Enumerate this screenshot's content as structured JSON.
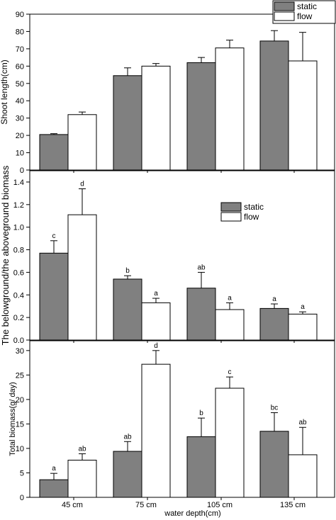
{
  "chart_data": [
    {
      "type": "bar",
      "ylabel": "Shoot length(cm)",
      "ylim": [
        0,
        90
      ],
      "yticks": [
        0,
        10,
        20,
        30,
        40,
        50,
        60,
        70,
        80,
        90
      ],
      "categories": [
        "45 cm",
        "75 cm",
        "105 cm",
        "135 cm"
      ],
      "series": [
        {
          "name": "static",
          "color": "#808080",
          "values": [
            20.5,
            54.5,
            62,
            74.5
          ],
          "errors": [
            0.5,
            4.5,
            3,
            6
          ],
          "labels": [
            "",
            "",
            "",
            ""
          ]
        },
        {
          "name": "flow",
          "color": "#ffffff",
          "values": [
            32,
            60,
            70.5,
            63
          ],
          "errors": [
            1.5,
            1.5,
            4.5,
            16.5
          ],
          "labels": [
            "",
            "",
            "",
            ""
          ]
        }
      ],
      "legend": "top-right"
    },
    {
      "type": "bar",
      "ylabel": "The belowground/the aboveground biomass",
      "ylim": [
        0,
        1.5
      ],
      "yticks": [
        "0.0",
        "0.2",
        "0.4",
        "0.6",
        "0.8",
        "1.0",
        "1.2",
        "1.4"
      ],
      "categories": [
        "45 cm",
        "75 cm",
        "105 cm",
        "135 cm"
      ],
      "series": [
        {
          "name": "static",
          "color": "#808080",
          "values": [
            0.77,
            0.54,
            0.46,
            0.28
          ],
          "errors": [
            0.11,
            0.03,
            0.14,
            0.04
          ],
          "labels": [
            "c",
            "b",
            "ab",
            "a"
          ]
        },
        {
          "name": "flow",
          "color": "#ffffff",
          "values": [
            1.11,
            0.33,
            0.27,
            0.23
          ],
          "errors": [
            0.23,
            0.04,
            0.06,
            0.02
          ],
          "labels": [
            "d",
            "a",
            "a",
            "a"
          ]
        }
      ],
      "legend": "top-right"
    },
    {
      "type": "bar",
      "ylabel": "Total biomass(g/ day)",
      "xlabel": "water depth(cm)",
      "ylim": [
        0,
        32
      ],
      "yticks": [
        0,
        5,
        10,
        15,
        20,
        25,
        30
      ],
      "categories": [
        "45 cm",
        "75 cm",
        "105 cm",
        "135 cm"
      ],
      "series": [
        {
          "name": "static",
          "color": "#808080",
          "values": [
            3.6,
            9.4,
            12.4,
            13.5
          ],
          "errors": [
            1.3,
            2,
            3.8,
            3.8
          ],
          "labels": [
            "a",
            "ab",
            "b",
            "bc"
          ]
        },
        {
          "name": "flow",
          "color": "#ffffff",
          "values": [
            7.6,
            27.2,
            22.3,
            8.7
          ],
          "errors": [
            1.3,
            2.8,
            2.3,
            5.6
          ],
          "labels": [
            "ab",
            "d",
            "c",
            "ab"
          ]
        }
      ]
    }
  ]
}
